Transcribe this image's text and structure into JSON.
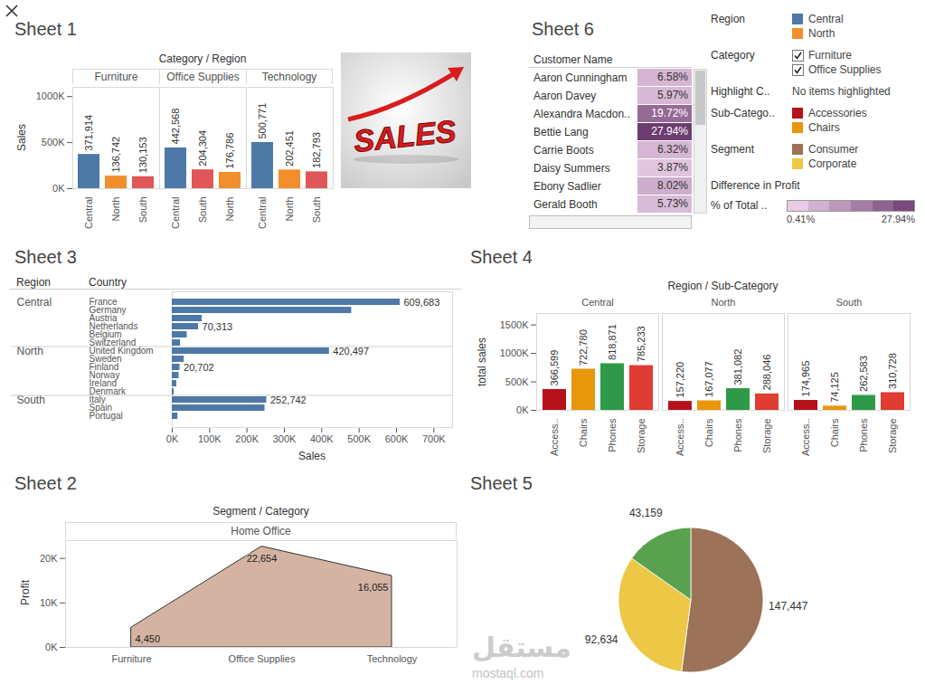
{
  "chart_data": [
    {
      "type": "bar",
      "title": "Sheet 1",
      "subtitle": "Category / Region",
      "ylabel": "Sales",
      "ylim": [
        0,
        1100000
      ],
      "yticks": [
        {
          "value": 0,
          "label": "0K"
        },
        {
          "value": 500000,
          "label": "500K"
        },
        {
          "value": 1000000,
          "label": "1000K"
        }
      ],
      "data_labels": true,
      "facets": [
        {
          "name": "Furniture",
          "categories": [
            "Central",
            "North",
            "South"
          ],
          "values": [
            371914,
            136742,
            130153
          ],
          "value_labels": [
            "371,914",
            "136,742",
            "130,153"
          ],
          "colors": [
            "#4e79a7",
            "#f28e2b",
            "#e15759"
          ]
        },
        {
          "name": "Office Supplies",
          "categories": [
            "Central",
            "South",
            "North"
          ],
          "values": [
            442568,
            204304,
            176786
          ],
          "value_labels": [
            "442,568",
            "204,304",
            "176,786"
          ],
          "colors": [
            "#4e79a7",
            "#e15759",
            "#f28e2b"
          ]
        },
        {
          "name": "Technology",
          "categories": [
            "Central",
            "North",
            "South"
          ],
          "values": [
            500771,
            202451,
            182793
          ],
          "value_labels": [
            "500,771",
            "202,451",
            "182,793"
          ],
          "colors": [
            "#4e79a7",
            "#f28e2b",
            "#e15759"
          ]
        }
      ]
    },
    {
      "type": "heatmap",
      "title": "Sheet 6",
      "column_header": "Customer Name",
      "categories": [
        "Aaron Cunningham",
        "Aaron Davey",
        "Alexandra Macdon..",
        "Bettie Lang",
        "Carrie Boots",
        "Daisy Summers",
        "Ebony Sadlier",
        "Gerald Booth"
      ],
      "values": [
        6.58,
        5.97,
        19.72,
        27.94,
        6.32,
        3.87,
        8.02,
        5.73
      ],
      "value_labels": [
        "6.58%",
        "5.97%",
        "19.72%",
        "27.94%",
        "6.32%",
        "3.87%",
        "8.02%",
        "5.73%"
      ],
      "legend_title": "Difference in Profit",
      "colorbar_title": "% of Total ..",
      "color_range": [
        0.41,
        27.94
      ],
      "color_ticks": [
        {
          "value": 0.41,
          "label": "0.41%"
        },
        {
          "value": 27.94,
          "label": "27.94%"
        }
      ]
    },
    {
      "type": "bar",
      "orientation": "horizontal",
      "title": "Sheet 3",
      "row_header": "Region",
      "column_header": "Country",
      "xlabel": "Sales",
      "xlim": [
        0,
        750000
      ],
      "xticks": [
        {
          "value": 0,
          "label": "0K"
        },
        {
          "value": 100000,
          "label": "100K"
        },
        {
          "value": 200000,
          "label": "200K"
        },
        {
          "value": 300000,
          "label": "300K"
        },
        {
          "value": 400000,
          "label": "400K"
        },
        {
          "value": 500000,
          "label": "500K"
        },
        {
          "value": 600000,
          "label": "600K"
        },
        {
          "value": 700000,
          "label": "700K"
        }
      ],
      "color": "#4e79a7",
      "data_labels": true,
      "groups": [
        {
          "name": "Central",
          "categories": [
            "France",
            "Germany",
            "Austria",
            "Netherlands",
            "Belgium",
            "Switzerland"
          ],
          "values": [
            609683,
            480000,
            80000,
            70313,
            40000,
            22000
          ],
          "value_labels": [
            "609,683",
            null,
            null,
            "70,313",
            null,
            null
          ]
        },
        {
          "name": "North",
          "categories": [
            "United Kingdom",
            "Sweden",
            "Finland",
            "Norway",
            "Ireland",
            "Denmark"
          ],
          "values": [
            420497,
            32000,
            20702,
            18000,
            12000,
            5000
          ],
          "value_labels": [
            "420,497",
            null,
            "20,702",
            null,
            null,
            null
          ]
        },
        {
          "name": "South",
          "categories": [
            "Italy",
            "Spain",
            "Portugal"
          ],
          "values": [
            252742,
            248000,
            15000
          ],
          "value_labels": [
            "252,742",
            null,
            null
          ]
        }
      ]
    },
    {
      "type": "bar",
      "title": "Sheet 4",
      "subtitle": "Region / Sub-Category",
      "ylabel": "total sales",
      "ylim": [
        0,
        1700000
      ],
      "yticks": [
        {
          "value": 0,
          "label": "0K"
        },
        {
          "value": 500000,
          "label": "500K"
        },
        {
          "value": 1000000,
          "label": "1000K"
        },
        {
          "value": 1500000,
          "label": "1500K"
        }
      ],
      "categories": [
        "Access..",
        "Chairs",
        "Phones",
        "Storage"
      ],
      "colors": [
        "#b5121b",
        "#e8960b",
        "#2e9a48",
        "#e03c31"
      ],
      "data_labels": true,
      "facets": [
        {
          "name": "Central",
          "values": [
            366599,
            722780,
            818871,
            785233
          ],
          "value_labels": [
            "366,599",
            "722,780",
            "818,871",
            "785,233"
          ]
        },
        {
          "name": "North",
          "values": [
            157220,
            167077,
            381082,
            288046
          ],
          "value_labels": [
            "157,220",
            "167,077",
            "381,082",
            "288,046"
          ]
        },
        {
          "name": "South",
          "values": [
            174965,
            74125,
            262583,
            310728
          ],
          "value_labels": [
            "174,965",
            "74,125",
            "262,583",
            "310,728"
          ]
        }
      ]
    },
    {
      "type": "area",
      "title": "Sheet 2",
      "subtitle": "Segment / Category",
      "facet": "Home Office",
      "ylabel": "Profit",
      "categories": [
        "Furniture",
        "Office Supplies",
        "Technology"
      ],
      "values": [
        4450,
        22654,
        16055
      ],
      "value_labels": [
        "4,450",
        "22,654",
        "16,055"
      ],
      "color": "#d5b3a3",
      "ylim": [
        0,
        24000
      ],
      "yticks": [
        {
          "value": 0,
          "label": "0K"
        },
        {
          "value": 10000,
          "label": "10K"
        },
        {
          "value": 20000,
          "label": "20K"
        }
      ],
      "data_labels": true
    },
    {
      "type": "pie",
      "title": "Sheet 5",
      "values": [
        147447,
        92634,
        43159
      ],
      "value_labels": [
        "147,447",
        "92,634",
        "43,159"
      ],
      "colors": [
        "#9c7358",
        "#ecc846",
        "#59a14f"
      ],
      "data_labels": true
    }
  ],
  "filters": [
    {
      "title": "Region",
      "items": [
        {
          "label": "Central",
          "color": "#4e79a7"
        },
        {
          "label": "North",
          "color": "#f28e2b"
        }
      ]
    },
    {
      "title": "Category",
      "items": [
        {
          "label": "Furniture",
          "checked": true
        },
        {
          "label": "Office Supplies",
          "checked": true
        }
      ]
    },
    {
      "title": "Highlight C..",
      "items": [
        {
          "label": "No items highlighted"
        }
      ]
    },
    {
      "title": "Sub-Catego..",
      "items": [
        {
          "label": "Accessories",
          "color": "#b5121b"
        },
        {
          "label": "Chairs",
          "color": "#e8960b"
        }
      ]
    },
    {
      "title": "Segment",
      "items": [
        {
          "label": "Consumer",
          "color": "#9c7358"
        },
        {
          "label": "Corporate",
          "color": "#ecc846"
        }
      ]
    }
  ],
  "image_text": "SALES",
  "watermark": [
    "مستقل",
    "mostaql.com"
  ]
}
